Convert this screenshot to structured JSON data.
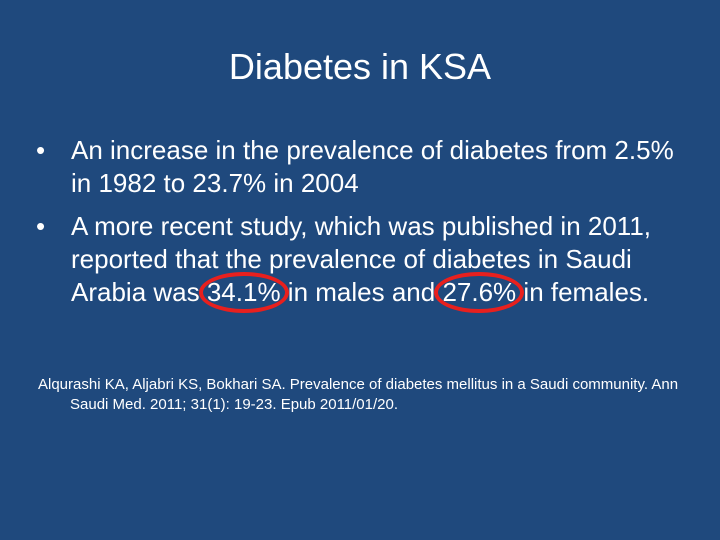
{
  "slide": {
    "title": "Diabetes in KSA",
    "bullet_symbol": "•",
    "bullets": [
      {
        "text": "An increase in the prevalence of diabetes from 2.5%  in 1982 to 23.7% in 2004"
      },
      {
        "text_before_1": "A more recent study, which was published in 2011, reported that the prevalence of diabetes in Saudi Arabia was ",
        "highlight_1": "34.1%",
        "text_after_1": " in males and ",
        "highlight_2": "27.6%",
        "text_after_2": " in females."
      }
    ],
    "reference": "Alqurashi KA, Aljabri KS, Bokhari SA. Prevalence of diabetes mellitus in a Saudi community. Ann Saudi Med. 2011; 31(1): 19-23. Epub 2011/01/20.",
    "colors": {
      "background": "#1f497d",
      "text": "#ffffff",
      "highlight_circle": "#e8201e"
    }
  }
}
